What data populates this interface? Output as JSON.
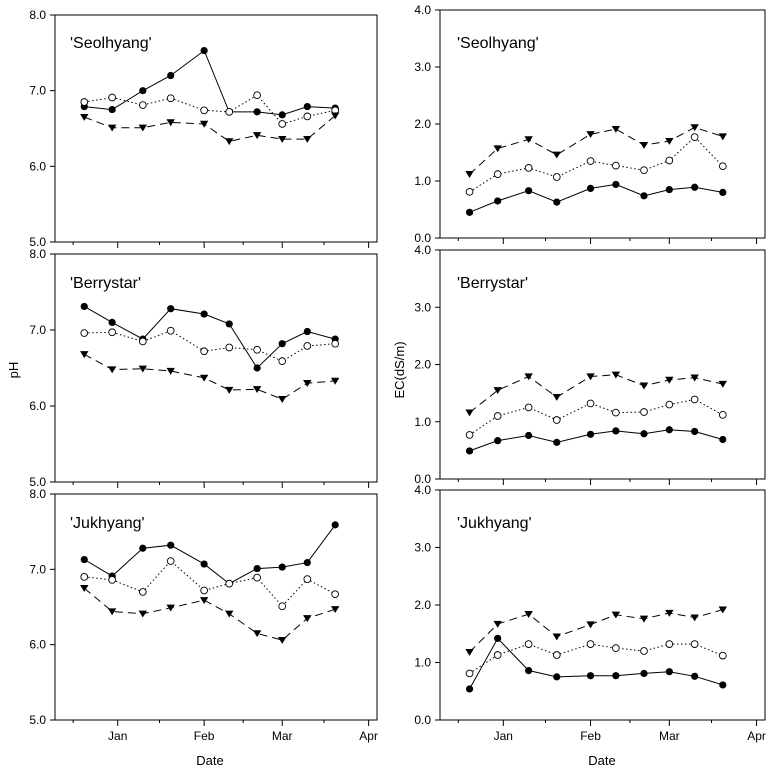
{
  "chart_data": [
    {
      "type": "line",
      "title": "'Seolhyang'",
      "xlabel": "",
      "ylabel": "",
      "ylim": [
        5.0,
        8.0
      ],
      "yticks": [
        "5.0",
        "6.0",
        "7.0",
        "8.0"
      ],
      "xticks": [],
      "x": [
        "Dec 20",
        "Dec 30",
        "Jan 10",
        "Jan 20",
        "Feb 1",
        "Feb 10",
        "Feb 20",
        "Mar 1",
        "Mar 10",
        "Mar 20"
      ],
      "series": [
        {
          "marker": "filled-circle",
          "line": "solid",
          "values": [
            6.79,
            6.75,
            7.0,
            7.2,
            7.53,
            6.72,
            6.72,
            6.68,
            6.79,
            6.77
          ]
        },
        {
          "marker": "open-circle",
          "line": "dotted",
          "values": [
            6.85,
            6.91,
            6.81,
            6.9,
            6.74,
            6.72,
            6.94,
            6.56,
            6.66,
            6.74
          ]
        },
        {
          "marker": "filled-triangle-down",
          "line": "dashed",
          "values": [
            6.65,
            6.51,
            6.51,
            6.58,
            6.56,
            6.33,
            6.41,
            6.36,
            6.36,
            6.67
          ]
        }
      ]
    },
    {
      "type": "line",
      "title": "'Seolhyang'",
      "xlabel": "",
      "ylabel": "",
      "ylim": [
        0.0,
        4.0
      ],
      "yticks": [
        "0.0",
        "1.0",
        "2.0",
        "3.0",
        "4.0"
      ],
      "xticks": [],
      "x": [
        "Dec 20",
        "Dec 30",
        "Jan 10",
        "Jan 20",
        "Feb 1",
        "Feb 10",
        "Feb 20",
        "Mar 1",
        "Mar 10",
        "Mar 20"
      ],
      "series": [
        {
          "marker": "filled-circle",
          "line": "solid",
          "values": [
            0.45,
            0.65,
            0.83,
            0.63,
            0.87,
            0.94,
            0.74,
            0.85,
            0.89,
            0.8
          ]
        },
        {
          "marker": "open-circle",
          "line": "dotted",
          "values": [
            0.81,
            1.12,
            1.23,
            1.07,
            1.35,
            1.27,
            1.19,
            1.36,
            1.77,
            1.26
          ]
        },
        {
          "marker": "filled-triangle-down",
          "line": "dashed",
          "values": [
            1.12,
            1.57,
            1.73,
            1.46,
            1.82,
            1.91,
            1.63,
            1.7,
            1.94,
            1.78
          ]
        }
      ]
    },
    {
      "type": "line",
      "title": "'Berrystar'",
      "xlabel": "",
      "ylabel": "pH",
      "ylim": [
        5.0,
        8.0
      ],
      "yticks": [
        "5.0",
        "6.0",
        "7.0",
        "8.0"
      ],
      "xticks": [],
      "x": [
        "Dec 20",
        "Dec 30",
        "Jan 10",
        "Jan 20",
        "Feb 1",
        "Feb 10",
        "Feb 20",
        "Mar 1",
        "Mar 10",
        "Mar 20"
      ],
      "series": [
        {
          "marker": "filled-circle",
          "line": "solid",
          "values": [
            7.31,
            7.1,
            6.88,
            7.28,
            7.21,
            7.08,
            6.5,
            6.82,
            6.98,
            6.88
          ]
        },
        {
          "marker": "open-circle",
          "line": "dotted",
          "values": [
            6.96,
            6.97,
            6.85,
            6.99,
            6.72,
            6.77,
            6.74,
            6.59,
            6.79,
            6.82
          ]
        },
        {
          "marker": "filled-triangle-down",
          "line": "dashed",
          "values": [
            6.68,
            6.48,
            6.49,
            6.46,
            6.37,
            6.21,
            6.22,
            6.09,
            6.3,
            6.33
          ]
        }
      ]
    },
    {
      "type": "line",
      "title": "'Berrystar'",
      "xlabel": "",
      "ylabel": "EC(dS/m)",
      "ylim": [
        0.0,
        4.0
      ],
      "yticks": [
        "0.0",
        "1.0",
        "2.0",
        "3.0",
        "4.0"
      ],
      "xticks": [],
      "x": [
        "Dec 20",
        "Dec 30",
        "Jan 10",
        "Jan 20",
        "Feb 1",
        "Feb 10",
        "Feb 20",
        "Mar 1",
        "Mar 10",
        "Mar 20"
      ],
      "series": [
        {
          "marker": "filled-circle",
          "line": "solid",
          "values": [
            0.49,
            0.67,
            0.76,
            0.64,
            0.78,
            0.84,
            0.79,
            0.86,
            0.83,
            0.69
          ]
        },
        {
          "marker": "open-circle",
          "line": "dotted",
          "values": [
            0.77,
            1.1,
            1.25,
            1.03,
            1.32,
            1.16,
            1.17,
            1.3,
            1.39,
            1.12
          ]
        },
        {
          "marker": "filled-triangle-down",
          "line": "dashed",
          "values": [
            1.16,
            1.55,
            1.79,
            1.43,
            1.79,
            1.82,
            1.63,
            1.73,
            1.77,
            1.66
          ]
        }
      ]
    },
    {
      "type": "line",
      "title": "'Jukhyang'",
      "xlabel": "Date",
      "ylabel": "",
      "ylim": [
        5.0,
        8.0
      ],
      "yticks": [
        "5.0",
        "6.0",
        "7.0",
        "8.0"
      ],
      "xticks": [
        "Jan",
        "Feb",
        "Mar",
        "Apr"
      ],
      "x": [
        "Dec 20",
        "Dec 30",
        "Jan 10",
        "Jan 20",
        "Feb 1",
        "Feb 10",
        "Feb 20",
        "Mar 1",
        "Mar 10",
        "Mar 20"
      ],
      "series": [
        {
          "marker": "filled-circle",
          "line": "solid",
          "values": [
            7.13,
            6.91,
            7.28,
            7.32,
            7.07,
            6.81,
            7.01,
            7.03,
            7.09,
            7.59
          ]
        },
        {
          "marker": "open-circle",
          "line": "dotted",
          "values": [
            6.9,
            6.86,
            6.7,
            7.11,
            6.72,
            6.81,
            6.89,
            6.51,
            6.87,
            6.67
          ]
        },
        {
          "marker": "filled-triangle-down",
          "line": "dashed",
          "values": [
            6.75,
            6.44,
            6.41,
            6.49,
            6.59,
            6.41,
            6.15,
            6.06,
            6.35,
            6.47
          ]
        }
      ]
    },
    {
      "type": "line",
      "title": "'Jukhyang'",
      "xlabel": "Date",
      "ylabel": "",
      "ylim": [
        0.0,
        4.0
      ],
      "yticks": [
        "0.0",
        "1.0",
        "2.0",
        "3.0",
        "4.0"
      ],
      "xticks": [
        "Jan",
        "Feb",
        "Mar",
        "Apr"
      ],
      "x": [
        "Dec 20",
        "Dec 30",
        "Jan 10",
        "Jan 20",
        "Feb 1",
        "Feb 10",
        "Feb 20",
        "Mar 1",
        "Mar 10",
        "Mar 20"
      ],
      "series": [
        {
          "marker": "filled-circle",
          "line": "solid",
          "values": [
            0.54,
            1.42,
            0.86,
            0.75,
            0.77,
            0.77,
            0.81,
            0.84,
            0.76,
            0.61
          ]
        },
        {
          "marker": "open-circle",
          "line": "dotted",
          "values": [
            0.81,
            1.13,
            1.32,
            1.13,
            1.32,
            1.25,
            1.2,
            1.32,
            1.32,
            1.12
          ]
        },
        {
          "marker": "filled-triangle-down",
          "line": "dashed",
          "values": [
            1.18,
            1.67,
            1.84,
            1.45,
            1.66,
            1.83,
            1.76,
            1.86,
            1.78,
            1.92
          ]
        }
      ]
    }
  ]
}
